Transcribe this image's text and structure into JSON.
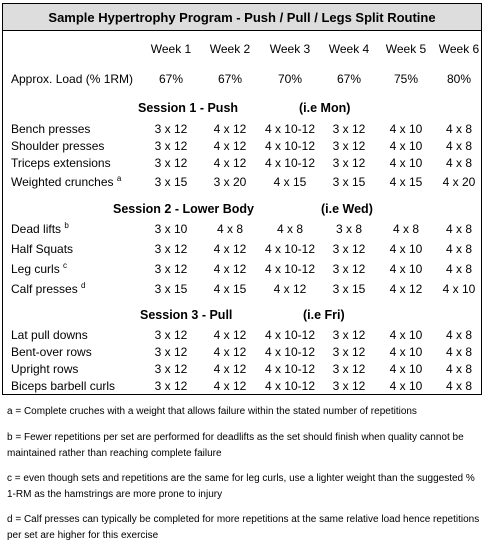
{
  "title": "Sample Hypertrophy Program - Push / Pull / Legs Split Routine",
  "weeks": [
    "Week 1",
    "Week 2",
    "Week 3",
    "Week 4",
    "Week 5",
    "Week 6"
  ],
  "load": {
    "label": "Approx. Load (% 1RM)",
    "values": [
      "67%",
      "67%",
      "70%",
      "67%",
      "75%",
      "80%"
    ]
  },
  "sessions": [
    {
      "title": "Session 1 - Push",
      "day": "(i.e Mon)",
      "rows": [
        {
          "name": "Bench presses",
          "sup": "",
          "values": [
            "3 x 12",
            "4 x 12",
            "4 x 10-12",
            "3 x 12",
            "4 x 10",
            "4 x 8"
          ]
        },
        {
          "name": "Shoulder presses",
          "sup": "",
          "values": [
            "3 x 12",
            "4 x 12",
            "4 x 10-12",
            "3 x 12",
            "4 x 10",
            "4 x 8"
          ]
        },
        {
          "name": "Triceps extensions",
          "sup": "",
          "values": [
            "3 x 12",
            "4 x 12",
            "4 x 10-12",
            "3 x 12",
            "4 x 10",
            "4 x 8"
          ]
        },
        {
          "name": "Weighted crunches",
          "sup": "a",
          "values": [
            "3 x 15",
            "3 x 20",
            "4 x 15",
            "3 x 15",
            "4 x 15",
            "4 x 20"
          ]
        }
      ]
    },
    {
      "title": "Session 2 - Lower Body",
      "day": "(i.e Wed)",
      "rows": [
        {
          "name": "Dead lifts",
          "sup": "b",
          "values": [
            "3 x 10",
            "4 x 8",
            "4 x 8",
            "3 x 8",
            "4 x 8",
            "4 x 8"
          ]
        },
        {
          "name": "Half Squats",
          "sup": "",
          "values": [
            "3 x 12",
            "4 x 12",
            "4 x 10-12",
            "3 x 12",
            "4 x 10",
            "4 x 8"
          ]
        },
        {
          "name": "Leg curls",
          "sup": "c",
          "values": [
            "3 x 12",
            "4 x 12",
            "4 x 10-12",
            "3 x 12",
            "4 x 10",
            "4 x 8"
          ]
        },
        {
          "name": "Calf presses",
          "sup": "d",
          "values": [
            "3 x 15",
            "4 x 15",
            "4 x 12",
            "3 x 15",
            "4 x 12",
            "4 x 10"
          ]
        }
      ]
    },
    {
      "title": "Session 3 - Pull",
      "day": "(i.e Fri)",
      "rows": [
        {
          "name": "Lat pull downs",
          "sup": "",
          "values": [
            "3 x 12",
            "4 x 12",
            "4 x 10-12",
            "3 x 12",
            "4 x 10",
            "4 x 8"
          ]
        },
        {
          "name": "Bent-over rows",
          "sup": "",
          "values": [
            "3 x 12",
            "4 x 12",
            "4 x 10-12",
            "3 x 12",
            "4 x 10",
            "4 x 8"
          ]
        },
        {
          "name": "Upright rows",
          "sup": "",
          "values": [
            "3 x 12",
            "4 x 12",
            "4 x 10-12",
            "3 x 12",
            "4 x 10",
            "4 x 8"
          ]
        },
        {
          "name": "Biceps barbell curls",
          "sup": "",
          "values": [
            "3 x 12",
            "4 x 12",
            "4 x 10-12",
            "3 x 12",
            "4 x 10",
            "4 x 8"
          ]
        }
      ]
    }
  ],
  "notes": [
    "a  = Complete cruches with a weight that allows failure within the stated number of repetitions",
    "b = Fewer repetitions per set are performed for deadlifts as the set should finish when quality cannot be maintained rather than reaching complete failure",
    "c = even though sets and repetitions are the same for leg curls, use a lighter weight than the suggested % 1-RM as the hamstrings are more prone to injury",
    "d = Calf presses can typically be completed for more repetitions at the same relative load hence repetitions per set are higher for this exercise"
  ]
}
